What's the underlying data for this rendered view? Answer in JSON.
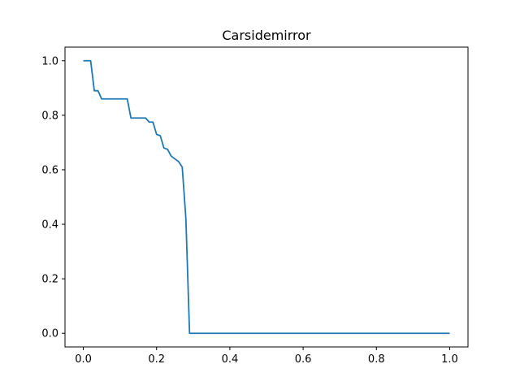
{
  "chart_data": {
    "type": "line",
    "title": "Carsidemirror",
    "xlabel": "",
    "ylabel": "",
    "xlim": [
      -0.05,
      1.05
    ],
    "ylim": [
      -0.05,
      1.05
    ],
    "grid": false,
    "xticks": [
      0.0,
      0.2,
      0.4,
      0.6,
      0.8,
      1.0
    ],
    "xtick_labels": [
      "0.0",
      "0.2",
      "0.4",
      "0.6",
      "0.8",
      "1.0"
    ],
    "yticks": [
      0.0,
      0.2,
      0.4,
      0.6,
      0.8,
      1.0
    ],
    "ytick_labels": [
      "0.0",
      "0.2",
      "0.4",
      "0.6",
      "0.8",
      "1.0"
    ],
    "series": [
      {
        "color": "#1f77b4",
        "x": [
          0.0,
          0.02,
          0.03,
          0.04,
          0.05,
          0.12,
          0.13,
          0.17,
          0.18,
          0.19,
          0.2,
          0.21,
          0.22,
          0.23,
          0.24,
          0.25,
          0.26,
          0.27,
          0.28,
          0.29,
          1.0
        ],
        "y": [
          1.0,
          1.0,
          0.89,
          0.89,
          0.86,
          0.86,
          0.79,
          0.79,
          0.775,
          0.775,
          0.73,
          0.725,
          0.68,
          0.675,
          0.65,
          0.64,
          0.63,
          0.61,
          0.42,
          0.0,
          0.0
        ]
      }
    ]
  }
}
